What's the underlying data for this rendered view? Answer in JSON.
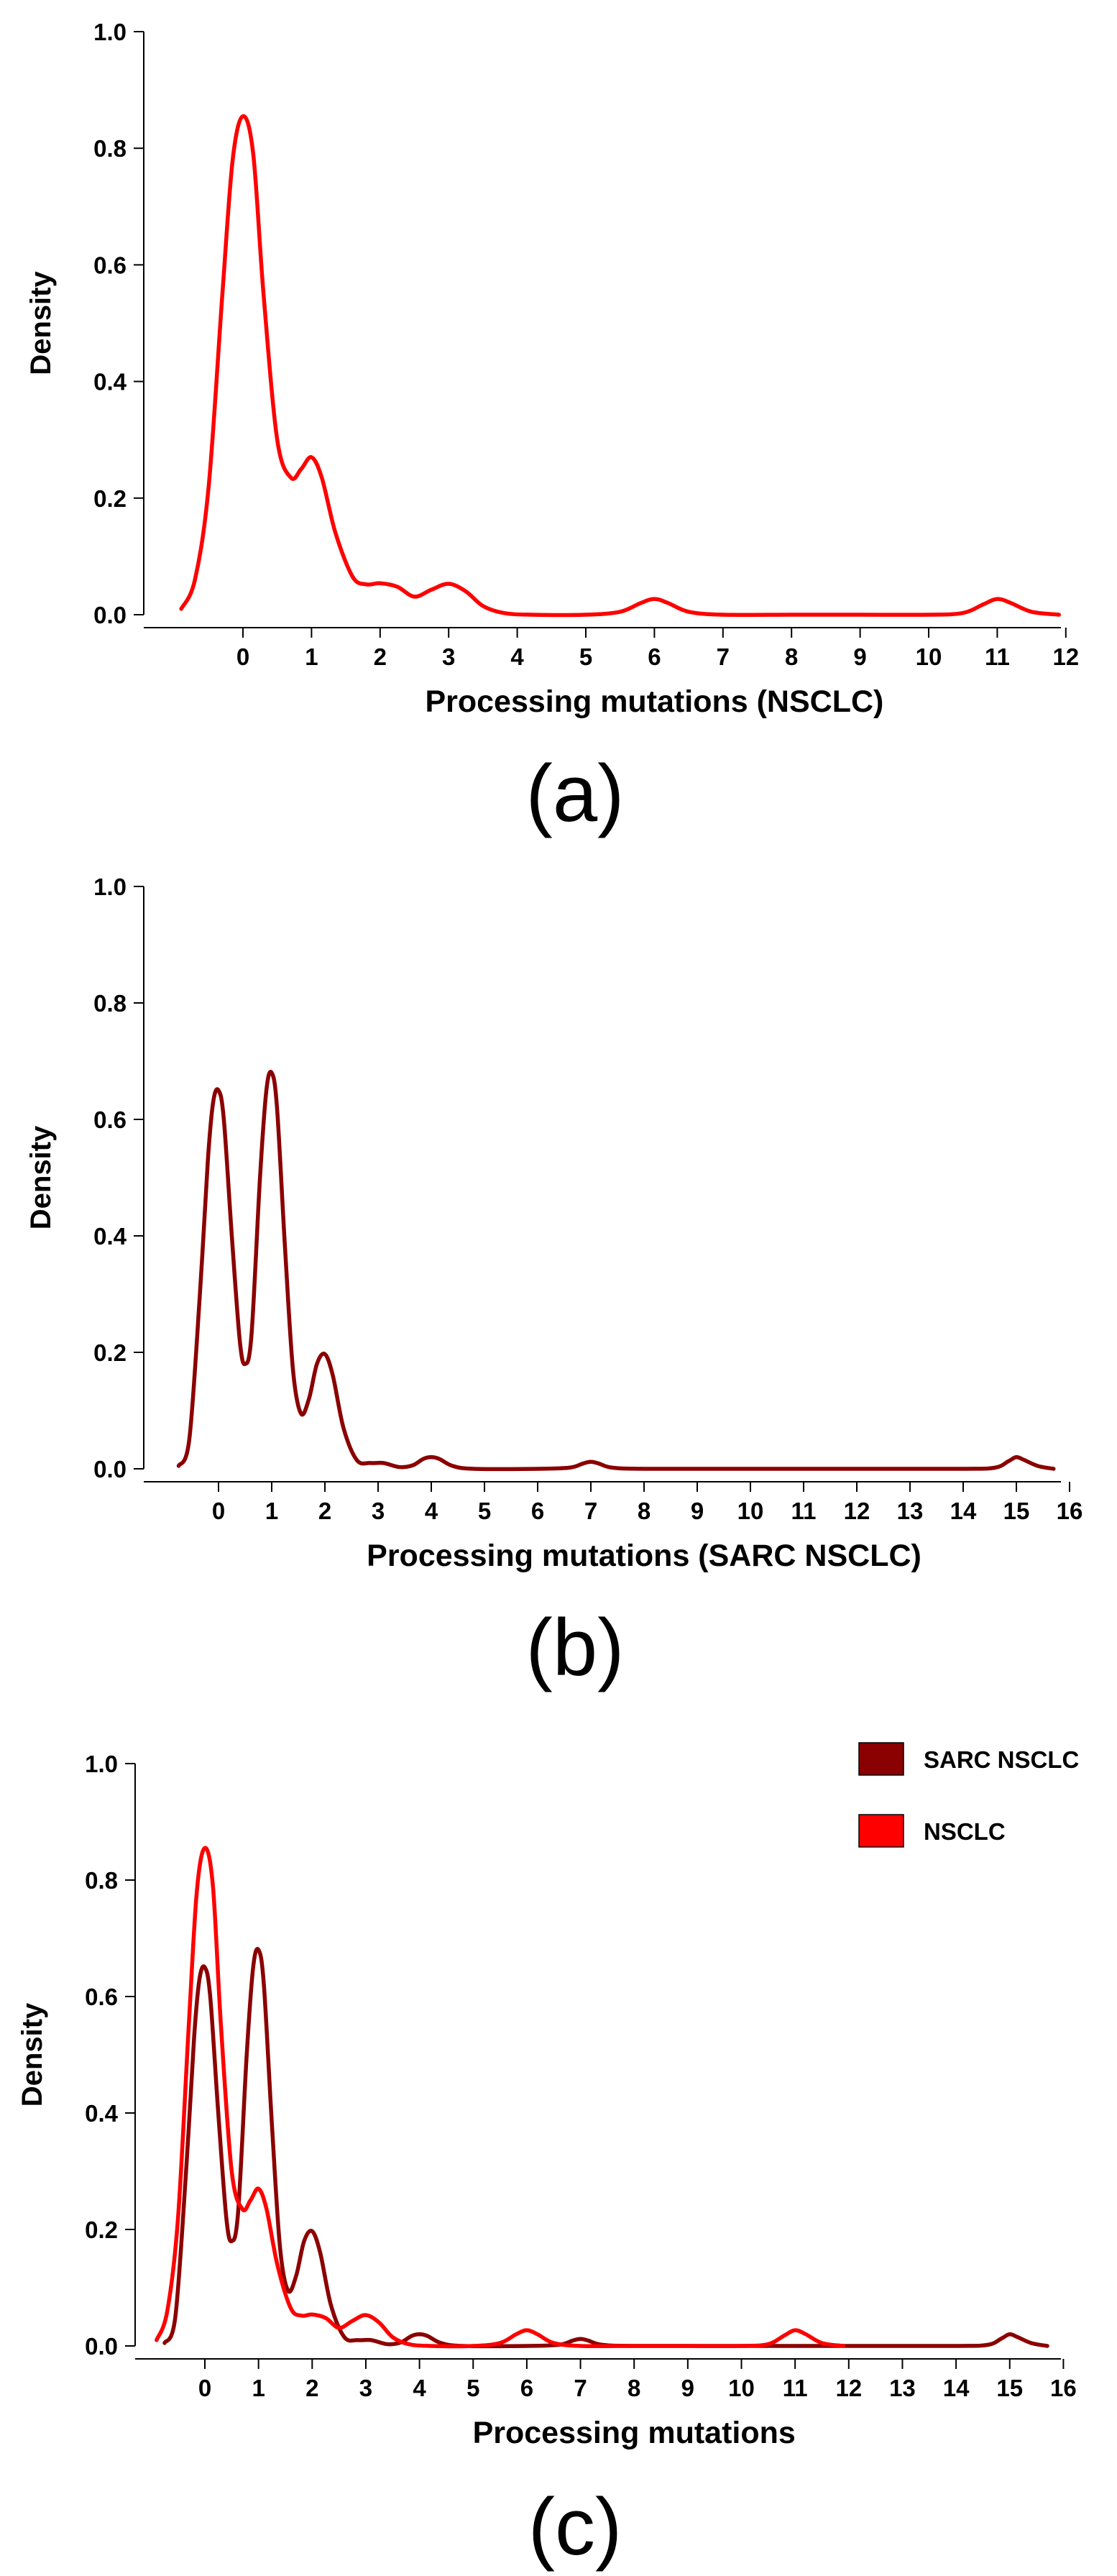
{
  "chart_data": [
    {
      "type": "line",
      "panel_label": "(a)",
      "title": "",
      "xlabel": "Processing mutations (NSCLC)",
      "ylabel": "Density",
      "xlim": [
        -1,
        12
      ],
      "ylim": [
        0,
        1.0
      ],
      "xticks": [
        0,
        1,
        2,
        3,
        4,
        5,
        6,
        7,
        8,
        9,
        10,
        11,
        12
      ],
      "yticks": [
        0.0,
        0.2,
        0.4,
        0.6,
        0.8,
        1.0
      ],
      "ytick_labels": [
        "0.0",
        "0.2",
        "0.4",
        "0.6",
        "0.8",
        "1.0"
      ],
      "grid": false,
      "series": [
        {
          "name": "NSCLC",
          "color": "#ff0000",
          "x": [
            -0.9,
            -0.7,
            -0.5,
            -0.3,
            -0.15,
            0,
            0.15,
            0.3,
            0.5,
            0.7,
            0.85,
            1.0,
            1.15,
            1.35,
            1.6,
            1.8,
            2.0,
            2.25,
            2.5,
            2.75,
            3.0,
            3.25,
            3.5,
            3.8,
            4.2,
            5.0,
            5.5,
            5.8,
            6.0,
            6.2,
            6.5,
            7.0,
            8.0,
            9.0,
            10.0,
            10.5,
            10.8,
            11.0,
            11.2,
            11.5,
            11.9
          ],
          "y": [
            0.01,
            0.06,
            0.22,
            0.55,
            0.78,
            0.855,
            0.79,
            0.55,
            0.3,
            0.235,
            0.25,
            0.27,
            0.235,
            0.14,
            0.065,
            0.052,
            0.054,
            0.048,
            0.031,
            0.043,
            0.053,
            0.04,
            0.015,
            0.003,
            0.0,
            0.0,
            0.005,
            0.02,
            0.027,
            0.02,
            0.005,
            0.0,
            0.0,
            0.0,
            0.0,
            0.003,
            0.018,
            0.027,
            0.02,
            0.005,
            0.0
          ]
        }
      ]
    },
    {
      "type": "line",
      "panel_label": "(b)",
      "title": "",
      "xlabel": "Processing mutations (SARC NSCLC)",
      "ylabel": "Density",
      "xlim": [
        -1,
        16
      ],
      "ylim": [
        0,
        1.0
      ],
      "xticks": [
        0,
        1,
        2,
        3,
        4,
        5,
        6,
        7,
        8,
        9,
        10,
        11,
        12,
        13,
        14,
        15,
        16
      ],
      "yticks": [
        0.0,
        0.2,
        0.4,
        0.6,
        0.8,
        1.0
      ],
      "ytick_labels": [
        "0.0",
        "0.2",
        "0.4",
        "0.6",
        "0.8",
        "1.0"
      ],
      "grid": false,
      "series": [
        {
          "name": "SARC NSCLC",
          "color": "#8b0000",
          "x": [
            -0.75,
            -0.55,
            -0.35,
            -0.2,
            -0.1,
            0,
            0.1,
            0.25,
            0.4,
            0.5,
            0.62,
            0.78,
            0.9,
            1.0,
            1.1,
            1.25,
            1.4,
            1.55,
            1.7,
            1.85,
            2.0,
            2.15,
            2.35,
            2.6,
            2.85,
            3.1,
            3.4,
            3.65,
            3.85,
            4.0,
            4.15,
            4.4,
            4.8,
            6.0,
            6.6,
            6.85,
            7.0,
            7.15,
            7.4,
            8.0,
            10.0,
            12.0,
            14.0,
            14.6,
            14.85,
            15.0,
            15.15,
            15.4,
            15.7
          ],
          "y": [
            0.005,
            0.05,
            0.3,
            0.53,
            0.63,
            0.65,
            0.6,
            0.4,
            0.22,
            0.18,
            0.23,
            0.5,
            0.65,
            0.68,
            0.62,
            0.38,
            0.17,
            0.095,
            0.12,
            0.18,
            0.197,
            0.16,
            0.07,
            0.015,
            0.01,
            0.01,
            0.003,
            0.006,
            0.017,
            0.02,
            0.017,
            0.005,
            0.0,
            0.0,
            0.002,
            0.009,
            0.012,
            0.009,
            0.002,
            0.0,
            0.0,
            0.0,
            0.0,
            0.002,
            0.013,
            0.02,
            0.015,
            0.005,
            0.0
          ]
        }
      ]
    },
    {
      "type": "line",
      "panel_label": "(c)",
      "title": "",
      "xlabel": "Processing mutations",
      "ylabel": "Density",
      "xlim": [
        -1,
        16
      ],
      "ylim": [
        0,
        1.0
      ],
      "xticks": [
        0,
        1,
        2,
        3,
        4,
        5,
        6,
        7,
        8,
        9,
        10,
        11,
        12,
        13,
        14,
        15,
        16
      ],
      "yticks": [
        0.0,
        0.2,
        0.4,
        0.6,
        0.8,
        1.0
      ],
      "ytick_labels": [
        "0.0",
        "0.2",
        "0.4",
        "0.6",
        "0.8",
        "1.0"
      ],
      "grid": false,
      "legend": {
        "placement": "top-right",
        "entries": [
          {
            "label": "SARC NSCLC",
            "color": "#8b0000"
          },
          {
            "label": "NSCLC",
            "color": "#ff0000"
          }
        ]
      },
      "series": [
        {
          "name": "SARC NSCLC",
          "color": "#8b0000",
          "x": [
            -0.75,
            -0.55,
            -0.35,
            -0.2,
            -0.1,
            0,
            0.1,
            0.25,
            0.4,
            0.5,
            0.62,
            0.78,
            0.9,
            1.0,
            1.1,
            1.25,
            1.4,
            1.55,
            1.7,
            1.85,
            2.0,
            2.15,
            2.35,
            2.6,
            2.85,
            3.1,
            3.4,
            3.65,
            3.85,
            4.0,
            4.15,
            4.4,
            4.8,
            6.0,
            6.6,
            6.85,
            7.0,
            7.15,
            7.4,
            8.0,
            10.0,
            12.0,
            14.0,
            14.6,
            14.85,
            15.0,
            15.15,
            15.4,
            15.7
          ],
          "y": [
            0.005,
            0.05,
            0.3,
            0.53,
            0.63,
            0.65,
            0.6,
            0.4,
            0.22,
            0.18,
            0.23,
            0.5,
            0.65,
            0.68,
            0.62,
            0.38,
            0.17,
            0.095,
            0.12,
            0.18,
            0.197,
            0.16,
            0.07,
            0.015,
            0.01,
            0.01,
            0.003,
            0.006,
            0.017,
            0.02,
            0.017,
            0.005,
            0.0,
            0.0,
            0.002,
            0.009,
            0.012,
            0.009,
            0.002,
            0.0,
            0.0,
            0.0,
            0.0,
            0.002,
            0.013,
            0.02,
            0.015,
            0.005,
            0.0
          ]
        },
        {
          "name": "NSCLC",
          "color": "#ff0000",
          "x": [
            -0.9,
            -0.7,
            -0.5,
            -0.3,
            -0.15,
            0,
            0.15,
            0.3,
            0.5,
            0.7,
            0.85,
            1.0,
            1.15,
            1.35,
            1.6,
            1.8,
            2.0,
            2.25,
            2.5,
            2.75,
            3.0,
            3.25,
            3.5,
            3.8,
            4.2,
            5.0,
            5.5,
            5.8,
            6.0,
            6.2,
            6.5,
            7.0,
            8.0,
            9.0,
            10.0,
            10.5,
            10.8,
            11.0,
            11.2,
            11.5,
            11.9
          ],
          "y": [
            0.01,
            0.06,
            0.22,
            0.55,
            0.78,
            0.855,
            0.79,
            0.55,
            0.3,
            0.235,
            0.25,
            0.27,
            0.235,
            0.14,
            0.065,
            0.052,
            0.054,
            0.048,
            0.031,
            0.043,
            0.053,
            0.04,
            0.015,
            0.003,
            0.0,
            0.0,
            0.005,
            0.02,
            0.027,
            0.02,
            0.005,
            0.0,
            0.0,
            0.0,
            0.0,
            0.003,
            0.018,
            0.027,
            0.02,
            0.005,
            0.0
          ]
        }
      ]
    }
  ]
}
